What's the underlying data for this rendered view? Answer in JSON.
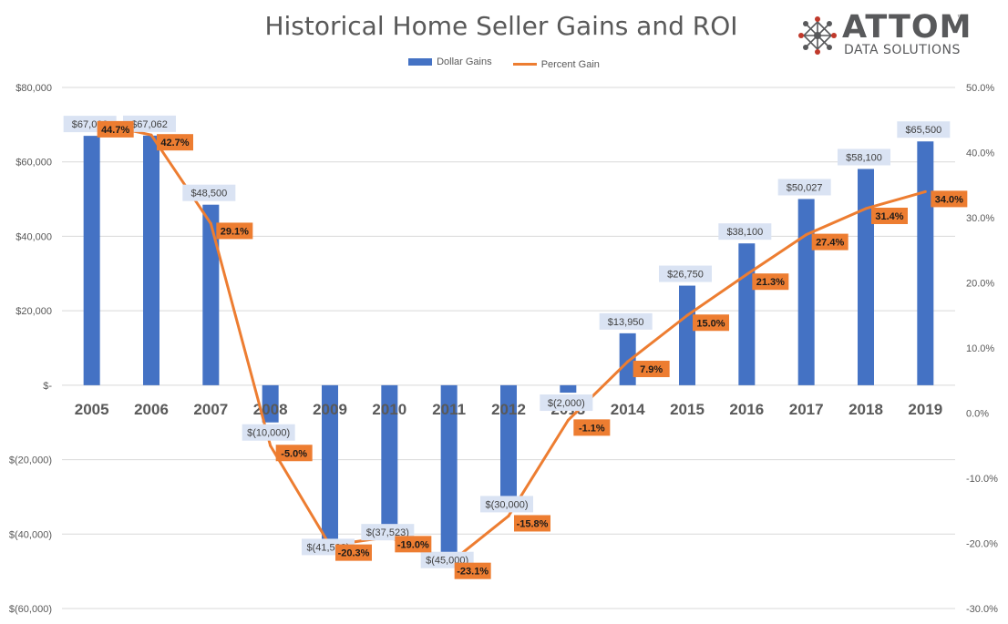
{
  "chart_data": {
    "type": "bar",
    "title": "Historical Home Seller Gains and ROI",
    "categories": [
      "2005",
      "2006",
      "2007",
      "2008",
      "2009",
      "2010",
      "2011",
      "2012",
      "2013",
      "2014",
      "2015",
      "2016",
      "2017",
      "2018",
      "2019"
    ],
    "series": [
      {
        "name": "Dollar Gains",
        "type": "bar",
        "axis": "left",
        "values": [
          67000,
          67062,
          48500,
          -10000,
          -41500,
          -37523,
          -45000,
          -30000,
          -2000,
          13950,
          26750,
          38100,
          50027,
          58100,
          65500
        ],
        "labels": [
          "$67,000",
          "$67,062",
          "$48,500",
          "$(10,000)",
          "$(41,500)",
          "$(37,523)",
          "$(45,000)",
          "$(30,000)",
          "$(2,000)",
          "$13,950",
          "$26,750",
          "$38,100",
          "$50,027",
          "$58,100",
          "$65,500"
        ],
        "color": "#4472C4"
      },
      {
        "name": "Percent Gain",
        "type": "line",
        "axis": "right",
        "values": [
          44.7,
          42.7,
          29.1,
          -5.0,
          -20.3,
          -19.0,
          -23.1,
          -15.8,
          -1.1,
          7.9,
          15.0,
          21.3,
          27.4,
          31.4,
          34.0
        ],
        "labels": [
          "44.7%",
          "42.7%",
          "29.1%",
          "-5.0%",
          "-20.3%",
          "-19.0%",
          "-23.1%",
          "-15.8%",
          "-1.1%",
          "7.9%",
          "15.0%",
          "21.3%",
          "27.4%",
          "31.4%",
          "34.0%"
        ],
        "color": "#ED7D31"
      }
    ],
    "y_left": {
      "ylim": [
        -60000,
        80000
      ],
      "ticks": [
        80000,
        60000,
        40000,
        20000,
        0,
        -20000,
        -40000,
        -60000
      ],
      "tick_labels": [
        "$80,000",
        "$60,000",
        "$40,000",
        "$20,000",
        "$-",
        "$(20,000)",
        "$(40,000)",
        "$(60,000)"
      ]
    },
    "y_right": {
      "ylim": [
        -30,
        50
      ],
      "ticks": [
        50,
        40,
        30,
        20,
        10,
        0,
        -10,
        -20,
        -30
      ],
      "tick_labels": [
        "50.0%",
        "40.0%",
        "30.0%",
        "20.0%",
        "10.0%",
        "0.0%",
        "-10.0%",
        "-20.0%",
        "-30.0%"
      ]
    },
    "grid": true,
    "legend": "top-center"
  },
  "logo": {
    "word": "ATTOM",
    "tm": "™",
    "sub": "DATA SOLUTIONS"
  },
  "colors": {
    "bar": "#4472C4",
    "line": "#ED7D31",
    "bar_label_bg": "#DAE3F3",
    "grid": "#D9D9D9",
    "axis_text": "#595959"
  }
}
